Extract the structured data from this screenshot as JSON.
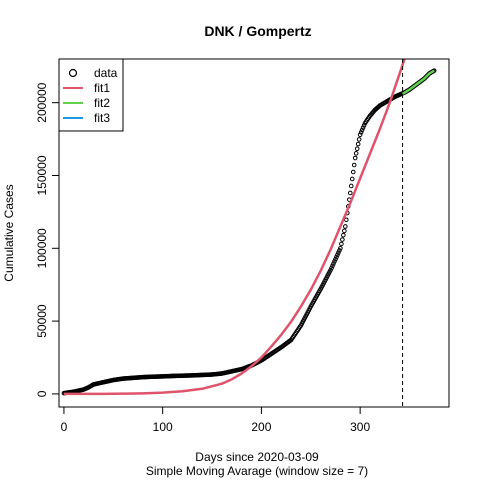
{
  "chart_data": {
    "type": "line",
    "title": "DNK / Gompertz",
    "xlabel": "Days since 2020-03-09",
    "subtitle": "Simple Moving Avarage (window size = 7)",
    "ylabel": "Cumulative Cases",
    "xlim": [
      -5,
      390
    ],
    "ylim": [
      -9000,
      230000
    ],
    "xticks": [
      0,
      100,
      200,
      300
    ],
    "yticks": [
      0,
      50000,
      100000,
      150000,
      200000
    ],
    "xtick_labels": [
      "0",
      "100",
      "200",
      "300"
    ],
    "ytick_labels": [
      "0",
      "50000",
      "100000",
      "150000",
      "200000"
    ],
    "vline_x": 343,
    "legend": {
      "placement": "top-left",
      "entries": [
        {
          "label": "data",
          "symbol": "circle",
          "color": "#000000"
        },
        {
          "label": "fit1",
          "symbol": "line",
          "color": "#DF536B"
        },
        {
          "label": "fit2",
          "symbol": "line",
          "color": "#61D04F"
        },
        {
          "label": "fit3",
          "symbol": "line",
          "color": "#2297E6"
        }
      ]
    },
    "series": [
      {
        "name": "data",
        "style": "points",
        "color": "#000000",
        "x": [
          0,
          10,
          20,
          25,
          30,
          40,
          50,
          60,
          70,
          80,
          90,
          100,
          110,
          120,
          130,
          140,
          150,
          160,
          170,
          180,
          190,
          200,
          210,
          220,
          230,
          240,
          250,
          260,
          270,
          280,
          285,
          290,
          295,
          300,
          305,
          310,
          315,
          320,
          325,
          330,
          335,
          340,
          345,
          350,
          355,
          360,
          365,
          370,
          375
        ],
        "y": [
          500,
          1500,
          3000,
          4500,
          6500,
          8000,
          9500,
          10500,
          11000,
          11500,
          11800,
          12000,
          12300,
          12500,
          12700,
          13000,
          13300,
          14000,
          15500,
          17000,
          19500,
          23000,
          27500,
          32000,
          37000,
          47000,
          60000,
          72000,
          85000,
          100000,
          115000,
          138000,
          162000,
          178000,
          186000,
          191000,
          195000,
          198000,
          200000,
          202000,
          204000,
          205500,
          207000,
          209000,
          211500,
          214000,
          216500,
          220000,
          222000
        ]
      },
      {
        "name": "fit1",
        "style": "line",
        "color": "#DF536B",
        "x": [
          0,
          20,
          40,
          60,
          80,
          100,
          120,
          140,
          160,
          170,
          180,
          190,
          200,
          210,
          220,
          230,
          240,
          250,
          260,
          270,
          280,
          290,
          300,
          310,
          320,
          330,
          340,
          345
        ],
        "y": [
          0,
          5,
          30,
          150,
          400,
          900,
          1800,
          3500,
          7000,
          10000,
          14000,
          19000,
          25000,
          32500,
          40500,
          49500,
          60000,
          71500,
          84500,
          99000,
          115000,
          131000,
          148000,
          165000,
          182000,
          200000,
          220000,
          230000
        ]
      },
      {
        "name": "fit2",
        "style": "line",
        "color": "#61D04F",
        "x": [
          343,
          350,
          355,
          360,
          365,
          370,
          375
        ],
        "y": [
          206000,
          209000,
          211500,
          214000,
          216500,
          220000,
          222000
        ]
      },
      {
        "name": "fit3",
        "style": "line",
        "color": "#2297E6",
        "x": [],
        "y": []
      }
    ]
  }
}
